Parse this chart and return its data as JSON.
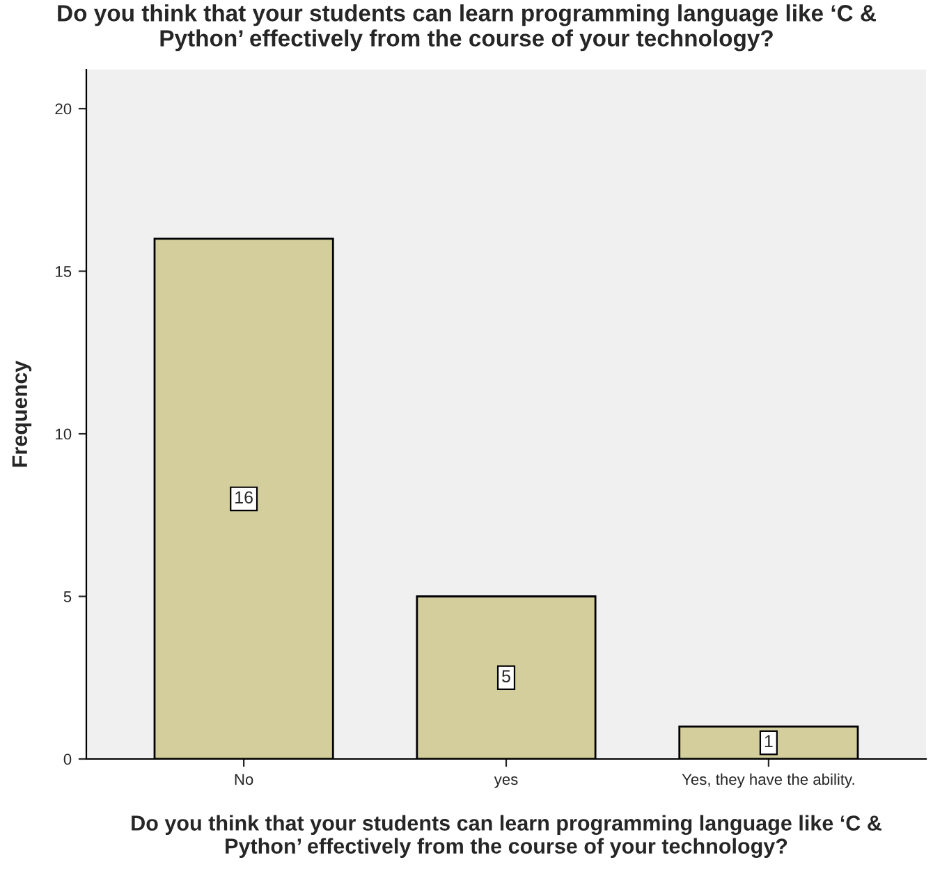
{
  "chart_data": {
    "type": "bar",
    "title": "Do you think that your students can learn programming language like ‘C &\nPython’ effectively from the course of your technology?",
    "xlabel": "Do you think that your students can learn programming language like ‘C &\nPython’ effectively from the course of your technology?",
    "ylabel": "Frequency",
    "categories": [
      "No",
      "yes",
      "Yes, they have the ability."
    ],
    "values": [
      16,
      5,
      1
    ],
    "color": "#d3ce9b",
    "ylim": [
      0,
      21.2
    ],
    "yticks": [
      0,
      5,
      10,
      15,
      20
    ],
    "data_labels": true,
    "grid": false,
    "legend": false
  }
}
